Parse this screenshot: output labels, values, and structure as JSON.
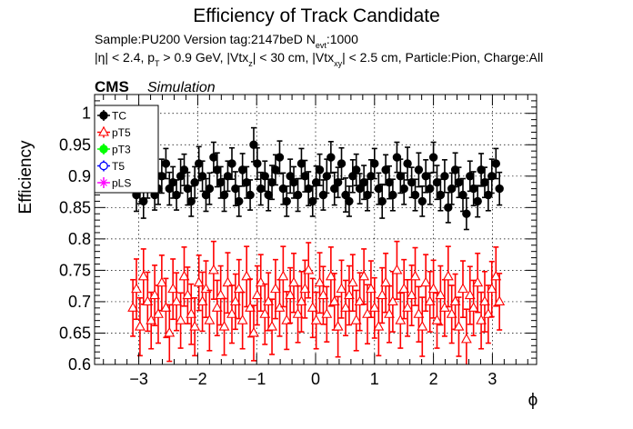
{
  "chart_data": {
    "type": "scatter",
    "title": "Efficiency of Track Candidate",
    "subtitle_line1": "Sample:PU200   Version tag:2147beD  N",
    "subtitle_line1_sub": "evt",
    "subtitle_line1_end": ":1000",
    "subtitle_line2": "|η| < 2.4, p",
    "subtitle_line2_sub1": "T",
    "subtitle_line2_b": " > 0.9 GeV, |Vtx",
    "subtitle_line2_sub2": "z",
    "subtitle_line2_c": "| < 30 cm, |Vtx",
    "subtitle_line2_sub3": "xy",
    "subtitle_line2_d": "| < 2.5 cm, Particle:Pion, Charge:All",
    "cms_label": "CMS",
    "sim_label": "Simulation",
    "xlabel": "ϕ",
    "ylabel": "Efficiency",
    "xlim": [
      -3.75,
      3.75
    ],
    "ylim": [
      0.6,
      1.03
    ],
    "xticks": [
      -3,
      -2,
      -1,
      0,
      1,
      2,
      3
    ],
    "xtick_labels": [
      "−3",
      "−2",
      "−1",
      "0",
      "1",
      "2",
      "3"
    ],
    "yticks": [
      0.6,
      0.65,
      0.7,
      0.75,
      0.8,
      0.85,
      0.9,
      0.95,
      1.0
    ],
    "ytick_labels": [
      "0.6",
      "0.65",
      "0.7",
      "0.75",
      "0.8",
      "0.85",
      "0.9",
      "0.95",
      "1"
    ],
    "grid": true,
    "legend_position": "top-left",
    "legend": [
      {
        "name": "TC",
        "color": "#000000",
        "marker": "filled-circle"
      },
      {
        "name": "pT5",
        "color": "#ff0000",
        "marker": "open-triangle"
      },
      {
        "name": "pT3",
        "color": "#00ff00",
        "marker": "filled-circle"
      },
      {
        "name": "T5",
        "color": "#0000ff",
        "marker": "open-circle"
      },
      {
        "name": "pLS",
        "color": "#ff00ff",
        "marker": "star"
      }
    ],
    "series": [
      {
        "name": "TC",
        "color": "#000000",
        "marker": "filled-circle",
        "x": [
          -3.1,
          -3.04,
          -2.98,
          -2.92,
          -2.85,
          -2.79,
          -2.73,
          -2.67,
          -2.61,
          -2.54,
          -2.48,
          -2.42,
          -2.36,
          -2.29,
          -2.23,
          -2.17,
          -2.11,
          -2.05,
          -1.98,
          -1.92,
          -1.86,
          -1.8,
          -1.73,
          -1.67,
          -1.61,
          -1.55,
          -1.49,
          -1.42,
          -1.36,
          -1.3,
          -1.24,
          -1.17,
          -1.11,
          -1.05,
          -0.99,
          -0.93,
          -0.86,
          -0.8,
          -0.74,
          -0.68,
          -0.61,
          -0.55,
          -0.49,
          -0.43,
          -0.37,
          -0.3,
          -0.24,
          -0.18,
          -0.12,
          -0.05,
          0.01,
          0.07,
          0.13,
          0.19,
          0.26,
          0.32,
          0.38,
          0.44,
          0.51,
          0.57,
          0.63,
          0.69,
          0.75,
          0.82,
          0.88,
          0.94,
          1.0,
          1.07,
          1.13,
          1.19,
          1.25,
          1.31,
          1.38,
          1.44,
          1.5,
          1.56,
          1.63,
          1.69,
          1.75,
          1.81,
          1.87,
          1.94,
          2.0,
          2.06,
          2.12,
          2.19,
          2.25,
          2.31,
          2.37,
          2.43,
          2.5,
          2.56,
          2.62,
          2.68,
          2.75,
          2.81,
          2.87,
          2.93,
          2.99,
          3.06,
          3.12
        ],
        "y": [
          0.9,
          0.87,
          0.88,
          0.86,
          0.89,
          0.91,
          0.87,
          0.88,
          0.9,
          0.92,
          0.88,
          0.89,
          0.87,
          0.9,
          0.91,
          0.88,
          0.86,
          0.89,
          0.92,
          0.9,
          0.87,
          0.88,
          0.93,
          0.91,
          0.89,
          0.87,
          0.9,
          0.92,
          0.88,
          0.86,
          0.91,
          0.89,
          0.87,
          0.95,
          0.92,
          0.88,
          0.9,
          0.87,
          0.89,
          0.91,
          0.93,
          0.88,
          0.86,
          0.9,
          0.89,
          0.87,
          0.92,
          0.9,
          0.88,
          0.86,
          0.89,
          0.91,
          0.87,
          0.9,
          0.93,
          0.88,
          0.89,
          0.92,
          0.87,
          0.86,
          0.9,
          0.91,
          0.88,
          0.89,
          0.87,
          0.9,
          0.92,
          0.88,
          0.86,
          0.91,
          0.89,
          0.87,
          0.93,
          0.9,
          0.88,
          0.92,
          0.89,
          0.87,
          0.91,
          0.86,
          0.9,
          0.88,
          0.93,
          0.89,
          0.87,
          0.9,
          0.85,
          0.88,
          0.91,
          0.89,
          0.87,
          0.84,
          0.9,
          0.88,
          0.86,
          0.91,
          0.89,
          0.87,
          0.9,
          0.92,
          0.88
        ],
        "err": [
          0.025,
          0.026,
          0.024,
          0.027,
          0.025,
          0.026,
          0.024,
          0.025,
          0.027,
          0.024,
          0.026,
          0.025,
          0.024,
          0.027,
          0.025,
          0.026,
          0.024,
          0.025,
          0.027,
          0.024,
          0.026,
          0.025,
          0.024,
          0.027,
          0.025,
          0.026,
          0.024,
          0.025,
          0.027,
          0.024,
          0.026,
          0.025,
          0.024,
          0.027,
          0.025,
          0.026,
          0.024,
          0.025,
          0.027,
          0.024,
          0.026,
          0.025,
          0.024,
          0.027,
          0.025,
          0.026,
          0.024,
          0.025,
          0.027,
          0.024,
          0.026,
          0.025,
          0.024,
          0.027,
          0.025,
          0.026,
          0.024,
          0.025,
          0.027,
          0.024,
          0.026,
          0.025,
          0.024,
          0.027,
          0.025,
          0.026,
          0.024,
          0.025,
          0.027,
          0.024,
          0.026,
          0.025,
          0.024,
          0.027,
          0.025,
          0.026,
          0.024,
          0.025,
          0.027,
          0.024,
          0.026,
          0.025,
          0.024,
          0.027,
          0.025,
          0.026,
          0.024,
          0.025,
          0.027,
          0.024,
          0.026,
          0.025,
          0.024,
          0.027,
          0.025,
          0.026,
          0.024,
          0.025,
          0.027,
          0.024,
          0.026
        ]
      },
      {
        "name": "pT5",
        "color": "#ff0000",
        "marker": "open-triangle",
        "x": [
          -3.1,
          -3.04,
          -2.98,
          -2.92,
          -2.85,
          -2.79,
          -2.73,
          -2.67,
          -2.61,
          -2.54,
          -2.48,
          -2.42,
          -2.36,
          -2.29,
          -2.23,
          -2.17,
          -2.11,
          -2.05,
          -1.98,
          -1.92,
          -1.86,
          -1.8,
          -1.73,
          -1.67,
          -1.61,
          -1.55,
          -1.49,
          -1.42,
          -1.36,
          -1.3,
          -1.24,
          -1.17,
          -1.11,
          -1.05,
          -0.99,
          -0.93,
          -0.86,
          -0.8,
          -0.74,
          -0.68,
          -0.61,
          -0.55,
          -0.49,
          -0.43,
          -0.37,
          -0.3,
          -0.24,
          -0.18,
          -0.12,
          -0.05,
          0.01,
          0.07,
          0.13,
          0.19,
          0.26,
          0.32,
          0.38,
          0.44,
          0.51,
          0.57,
          0.63,
          0.69,
          0.75,
          0.82,
          0.88,
          0.94,
          1.0,
          1.07,
          1.13,
          1.19,
          1.25,
          1.31,
          1.38,
          1.44,
          1.5,
          1.56,
          1.63,
          1.69,
          1.75,
          1.81,
          1.87,
          1.94,
          2.0,
          2.06,
          2.12,
          2.19,
          2.25,
          2.31,
          2.37,
          2.43,
          2.5,
          2.56,
          2.62,
          2.68,
          2.75,
          2.81,
          2.87,
          2.93,
          2.99,
          3.06,
          3.12
        ],
        "y": [
          0.69,
          0.72,
          0.66,
          0.74,
          0.7,
          0.67,
          0.71,
          0.68,
          0.73,
          0.69,
          0.65,
          0.72,
          0.7,
          0.67,
          0.74,
          0.71,
          0.68,
          0.66,
          0.73,
          0.7,
          0.72,
          0.67,
          0.75,
          0.69,
          0.71,
          0.66,
          0.73,
          0.68,
          0.7,
          0.72,
          0.67,
          0.74,
          0.69,
          0.65,
          0.71,
          0.73,
          0.68,
          0.7,
          0.66,
          0.72,
          0.69,
          0.74,
          0.67,
          0.71,
          0.73,
          0.68,
          0.7,
          0.72,
          0.75,
          0.69,
          0.67,
          0.73,
          0.71,
          0.68,
          0.74,
          0.7,
          0.66,
          0.72,
          0.69,
          0.71,
          0.73,
          0.67,
          0.7,
          0.74,
          0.68,
          0.72,
          0.69,
          0.66,
          0.71,
          0.73,
          0.68,
          0.7,
          0.75,
          0.67,
          0.72,
          0.69,
          0.71,
          0.74,
          0.68,
          0.66,
          0.73,
          0.7,
          0.72,
          0.67,
          0.71,
          0.69,
          0.74,
          0.68,
          0.7,
          0.66,
          0.72,
          0.64,
          0.71,
          0.69,
          0.73,
          0.67,
          0.7,
          0.68,
          0.72,
          0.74,
          0.7
        ],
        "err": [
          0.045,
          0.048,
          0.046,
          0.044,
          0.047,
          0.045,
          0.048,
          0.046,
          0.044,
          0.047,
          0.045,
          0.048,
          0.046,
          0.044,
          0.047,
          0.045,
          0.048,
          0.046,
          0.044,
          0.047,
          0.045,
          0.048,
          0.046,
          0.044,
          0.047,
          0.045,
          0.048,
          0.046,
          0.044,
          0.047,
          0.045,
          0.048,
          0.046,
          0.044,
          0.047,
          0.045,
          0.048,
          0.046,
          0.044,
          0.047,
          0.045,
          0.048,
          0.046,
          0.044,
          0.047,
          0.045,
          0.048,
          0.046,
          0.044,
          0.047,
          0.045,
          0.048,
          0.046,
          0.044,
          0.047,
          0.045,
          0.048,
          0.046,
          0.044,
          0.047,
          0.045,
          0.048,
          0.046,
          0.044,
          0.047,
          0.045,
          0.048,
          0.046,
          0.044,
          0.047,
          0.045,
          0.048,
          0.046,
          0.044,
          0.047,
          0.045,
          0.048,
          0.046,
          0.044,
          0.047,
          0.045,
          0.048,
          0.046,
          0.044,
          0.047,
          0.045,
          0.048,
          0.046,
          0.044,
          0.047,
          0.045,
          0.048,
          0.046,
          0.044,
          0.047,
          0.045,
          0.048,
          0.046,
          0.044,
          0.047,
          0.045
        ]
      }
    ]
  }
}
